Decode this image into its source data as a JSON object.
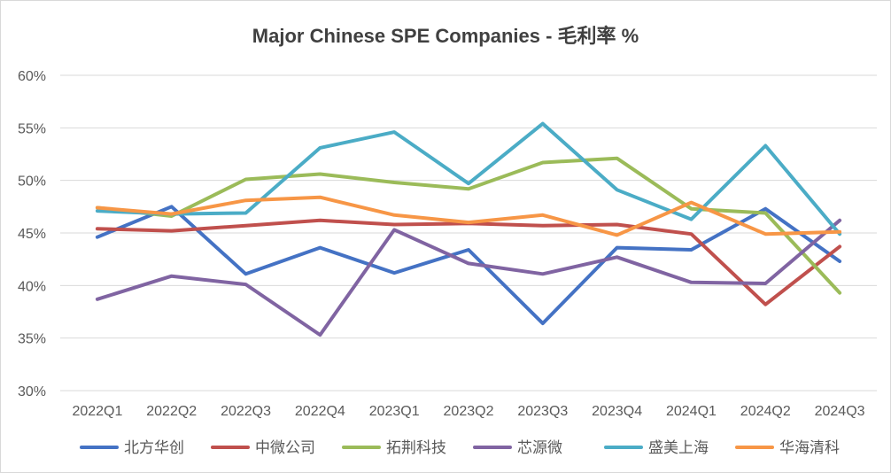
{
  "chart_data": {
    "type": "line",
    "title": "Major Chinese SPE Companies - 毛利率 %",
    "xlabel": "",
    "ylabel": "",
    "ylim": [
      30,
      60
    ],
    "yticks": [
      "30%",
      "35%",
      "40%",
      "45%",
      "50%",
      "55%",
      "60%"
    ],
    "ytick_values": [
      30,
      35,
      40,
      45,
      50,
      55,
      60
    ],
    "categories": [
      "2022Q1",
      "2022Q2",
      "2022Q3",
      "2022Q4",
      "2023Q1",
      "2023Q2",
      "2023Q3",
      "2023Q4",
      "2024Q1",
      "2024Q2",
      "2024Q3"
    ],
    "grid": "horizontal",
    "legend": "bottom",
    "series": [
      {
        "name": "北方华创",
        "color": "#4472c4",
        "values": [
          44.6,
          47.5,
          41.1,
          43.6,
          41.2,
          43.4,
          36.4,
          43.6,
          43.4,
          47.3,
          42.3
        ]
      },
      {
        "name": "中微公司",
        "color": "#c0504d",
        "values": [
          45.4,
          45.2,
          45.7,
          46.2,
          45.8,
          45.9,
          45.7,
          45.8,
          44.9,
          38.2,
          43.7
        ]
      },
      {
        "name": "拓荆科技",
        "color": "#9bbb59",
        "values": [
          47.4,
          46.6,
          50.1,
          50.6,
          49.8,
          49.2,
          51.7,
          52.1,
          47.3,
          46.9,
          39.3
        ]
      },
      {
        "name": "芯源微",
        "color": "#8064a2",
        "values": [
          38.7,
          40.9,
          40.1,
          35.3,
          45.3,
          42.1,
          41.1,
          42.7,
          40.3,
          40.2,
          46.2
        ]
      },
      {
        "name": "盛美上海",
        "color": "#4bacc6",
        "values": [
          47.1,
          46.8,
          46.9,
          53.1,
          54.6,
          49.7,
          55.4,
          49.1,
          46.3,
          53.3,
          44.9
        ]
      },
      {
        "name": "华海清科",
        "color": "#f79646",
        "values": [
          47.4,
          46.8,
          48.1,
          48.4,
          46.7,
          46.0,
          46.7,
          44.8,
          47.9,
          44.9,
          45.1
        ]
      }
    ]
  }
}
